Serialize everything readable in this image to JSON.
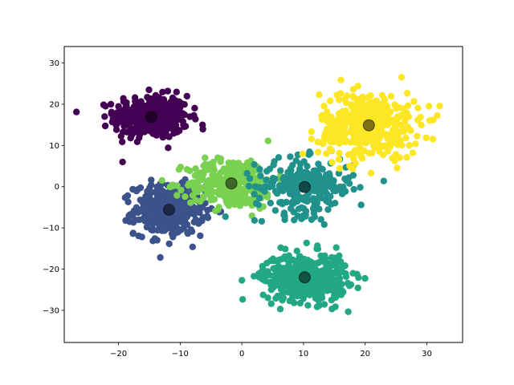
{
  "chart_data": {
    "type": "scatter",
    "title": "",
    "xlabel": "",
    "ylabel": "",
    "xlim": [
      -28.8,
      35.8
    ],
    "ylim": [
      -37.8,
      34.0
    ],
    "x_ticks": [
      -20,
      -10,
      0,
      10,
      20,
      30
    ],
    "y_ticks": [
      -30,
      -20,
      -10,
      0,
      10,
      20,
      30
    ],
    "grid": false,
    "legend": "none",
    "clusters": [
      {
        "color": "#440154",
        "center": [
          -14.7,
          16.9
        ],
        "spread": [
          3.0,
          2.6
        ],
        "count": 420
      },
      {
        "color": "#3b528b",
        "center": [
          -11.8,
          -5.6
        ],
        "spread": [
          2.8,
          3.0
        ],
        "count": 420
      },
      {
        "color": "#7ad151",
        "center": [
          -1.7,
          0.8
        ],
        "spread": [
          3.6,
          3.0
        ],
        "count": 320
      },
      {
        "color": "#21918c",
        "center": [
          10.2,
          -0.1
        ],
        "spread": [
          4.0,
          3.4
        ],
        "count": 260
      },
      {
        "color": "#22a884",
        "center": [
          10.2,
          -22.0
        ],
        "spread": [
          3.4,
          2.9
        ],
        "count": 460
      },
      {
        "color": "#fde725",
        "center": [
          20.6,
          14.9
        ],
        "spread": [
          4.0,
          4.0
        ],
        "count": 420
      }
    ],
    "centroids": {
      "color": "#000000",
      "opacity": 0.5,
      "points": [
        {
          "x": -14.7,
          "y": 16.9
        },
        {
          "x": -11.8,
          "y": -5.6
        },
        {
          "x": -1.7,
          "y": 0.8
        },
        {
          "x": 10.2,
          "y": -0.1
        },
        {
          "x": 10.2,
          "y": -22.0
        },
        {
          "x": 20.6,
          "y": 14.9
        }
      ]
    }
  }
}
